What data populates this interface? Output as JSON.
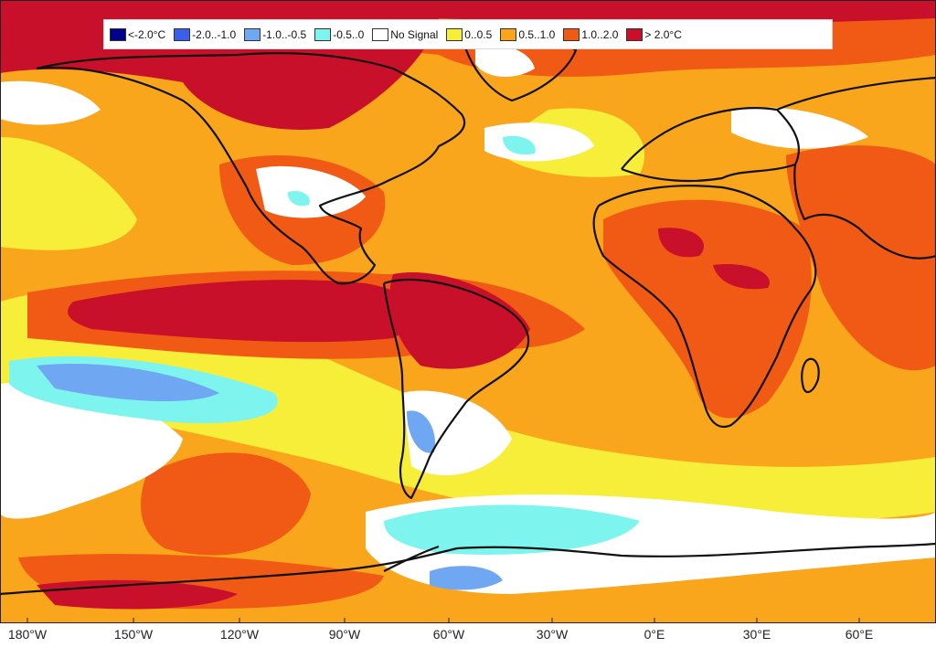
{
  "legend": {
    "items": [
      {
        "label": "<-2.0°C",
        "color": "#00008b"
      },
      {
        "label": "-2.0..-1.0",
        "color": "#3a5fe8"
      },
      {
        "label": "-1.0..-0.5",
        "color": "#6fa7f2"
      },
      {
        "label": "-0.5..0",
        "color": "#7df5ee"
      },
      {
        "label": "No Signal",
        "color": "#ffffff"
      },
      {
        "label": "0..0.5",
        "color": "#f7ee3a"
      },
      {
        "label": "0.5..1.0",
        "color": "#f9a61c"
      },
      {
        "label": "1.0..2.0",
        "color": "#f05a14"
      },
      {
        "label": "> 2.0°C",
        "color": "#c9102a"
      }
    ]
  },
  "x_axis": {
    "ticks": [
      "180°W",
      "150°W",
      "120°W",
      "90°W",
      "60°W",
      "30°W",
      "0°E",
      "30°E",
      "60°E"
    ]
  }
}
